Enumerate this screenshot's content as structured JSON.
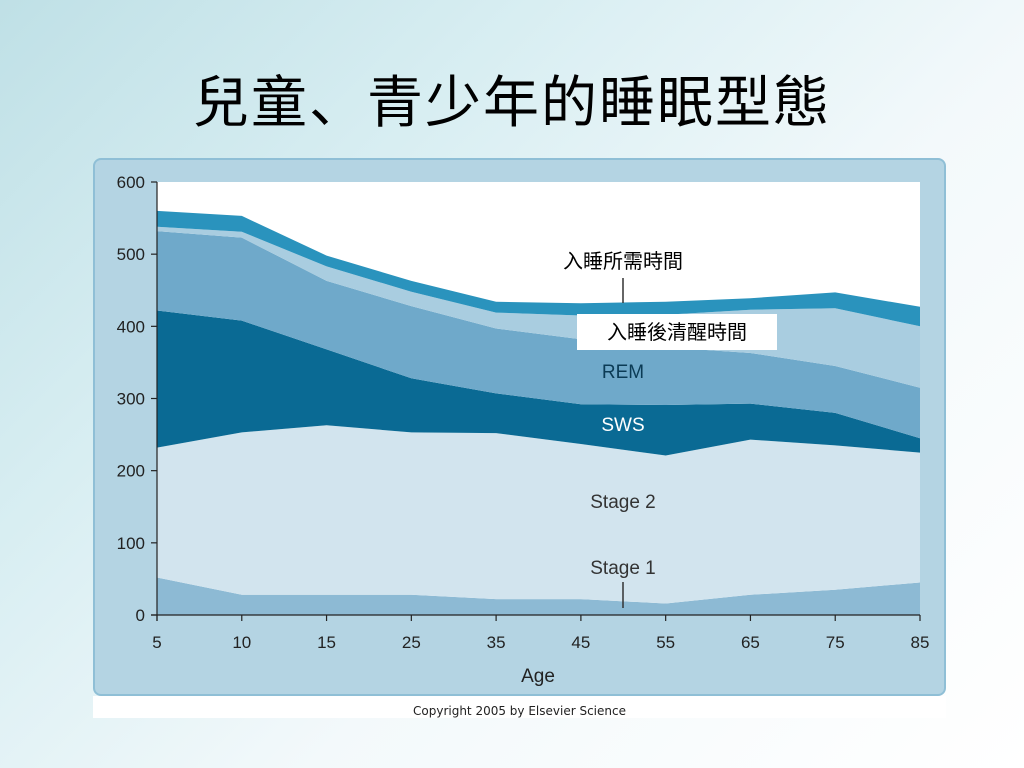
{
  "slide": {
    "title": "兒童、青少年的睡眠型態"
  },
  "footer": {
    "copyright": "Copyright 2005 by Elsevier Science"
  },
  "colors": {
    "panel": "#b4d4e3",
    "plot_bg": "#ffffff",
    "stage1": "#8dbad4",
    "stage2": "#d2e4ee",
    "sws": "#0a6a94",
    "rem": "#6fa9ca",
    "wake_after": "#a9cde0",
    "latency": "#2a93bd"
  },
  "chart_data": {
    "type": "area",
    "x": [
      5,
      10,
      15,
      25,
      35,
      45,
      55,
      65,
      75,
      85
    ],
    "xlabel": "Age",
    "ylabel": "",
    "xlim": [
      5,
      85
    ],
    "ylim": [
      0,
      600
    ],
    "x_ticks": [
      "5",
      "10",
      "15",
      "25",
      "35",
      "45",
      "55",
      "65",
      "75",
      "85"
    ],
    "y_ticks": [
      "0",
      "100",
      "200",
      "300",
      "400",
      "500",
      "600"
    ],
    "series": [
      {
        "name": "Stage 1",
        "values": [
          52,
          28,
          28,
          28,
          22,
          22,
          16,
          28,
          35,
          45
        ]
      },
      {
        "name": "Stage 2",
        "values": [
          180,
          225,
          235,
          225,
          230,
          215,
          205,
          215,
          200,
          180
        ]
      },
      {
        "name": "SWS",
        "values": [
          190,
          155,
          105,
          75,
          55,
          55,
          70,
          50,
          45,
          20
        ]
      },
      {
        "name": "REM",
        "values": [
          110,
          115,
          95,
          100,
          90,
          90,
          80,
          70,
          65,
          70
        ]
      },
      {
        "name": "入睡後清醒時間",
        "values": [
          6,
          8,
          20,
          20,
          22,
          33,
          45,
          60,
          80,
          85
        ]
      },
      {
        "name": "入睡所需時間",
        "values": [
          22,
          22,
          15,
          15,
          15,
          17,
          18,
          16,
          22,
          27
        ]
      }
    ],
    "annotations": [
      "入睡所需時間",
      "入睡後清醒時間",
      "REM",
      "SWS",
      "Stage 2",
      "Stage 1"
    ],
    "grid": false
  }
}
